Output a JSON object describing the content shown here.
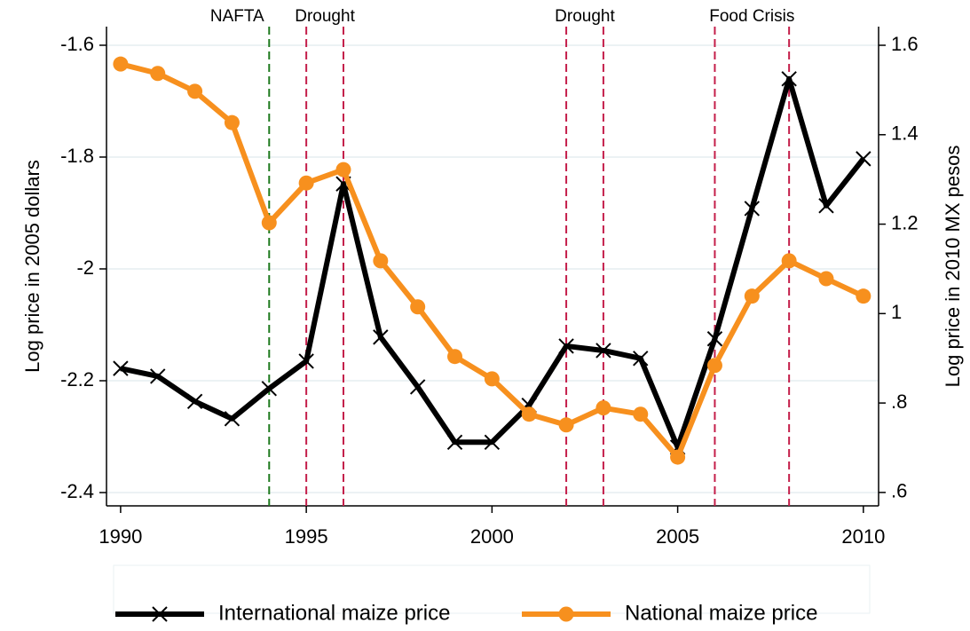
{
  "chart_data": {
    "type": "line",
    "x": [
      1990,
      1991,
      1992,
      1993,
      1994,
      1995,
      1996,
      1997,
      1998,
      1999,
      2000,
      2001,
      2002,
      2003,
      2004,
      2005,
      2006,
      2007,
      2008,
      2009,
      2010
    ],
    "series": [
      {
        "name": "International maize price",
        "color": "#000000",
        "marker": "x",
        "values": [
          -2.178,
          -2.192,
          -2.237,
          -2.268,
          -2.214,
          -2.165,
          -1.848,
          -2.122,
          -2.211,
          -2.31,
          -2.31,
          -2.244,
          -2.138,
          -2.146,
          -2.16,
          -2.319,
          -2.125,
          -1.892,
          -1.66,
          -1.887,
          -1.803
        ]
      },
      {
        "name": "National maize price",
        "color": "#f7901e",
        "marker": "circle",
        "axis": "y2",
        "values": [
          1.558,
          1.537,
          1.497,
          1.427,
          1.203,
          1.292,
          1.322,
          1.118,
          1.015,
          0.904,
          0.854,
          0.775,
          0.751,
          0.789,
          0.775,
          0.679,
          0.884,
          1.039,
          1.118,
          1.078,
          1.039
        ]
      }
    ],
    "xlim": [
      1989.62,
      2010.41
    ],
    "xticks": [
      1990,
      1995,
      2000,
      2005,
      2010
    ],
    "ylim": [
      -2.4238,
      -1.5667
    ],
    "yticks": [
      -2.4,
      -2.2,
      -2,
      -1.8,
      -1.6
    ],
    "y2lim": [
      0.57,
      1.6417
    ],
    "y2ticks": [
      {
        "value": 0.6,
        "label": ".6"
      },
      {
        "value": 0.8,
        "label": ".8"
      },
      1,
      1.2,
      1.4,
      1.6
    ],
    "ylabel": "Log price in 2005 dollars",
    "y2label": "Log price in 2010 MX pesos",
    "grid": true,
    "legend": "bottom",
    "annotations": [
      {
        "label": "NAFTA",
        "x": [
          1994
        ],
        "color": "#1e7a1e"
      },
      {
        "label": "Drought",
        "x": [
          1995,
          1996
        ],
        "color": "#c41e4a"
      },
      {
        "label": "Drought",
        "x": [
          2002,
          2003
        ],
        "color": "#c41e4a"
      },
      {
        "label": "Food Crisis",
        "x": [
          2006,
          2008
        ],
        "color": "#c41e4a"
      }
    ]
  }
}
